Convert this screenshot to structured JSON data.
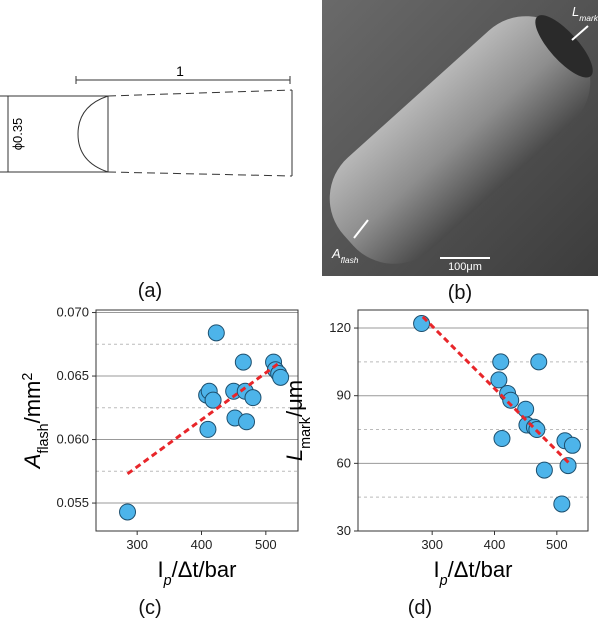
{
  "panel_a": {
    "length_label": "1",
    "diameter_label": "ϕ0.35",
    "caption": "(a)"
  },
  "panel_b": {
    "mark_label": [
      {
        "text": "L"
      },
      {
        "text": "mark",
        "sub": true
      }
    ],
    "flash_label": [
      {
        "text": "A"
      },
      {
        "text": "flash",
        "sub": true
      }
    ],
    "scale_label": "100μm",
    "caption": "(b)"
  },
  "chart_data": [
    {
      "type": "scatter",
      "caption": "(c)",
      "ylabel": [
        {
          "text": "A",
          "italic": true
        },
        {
          "text": "flash",
          "sub": true
        },
        {
          "text": "/mm"
        },
        {
          "text": "2",
          "sup": true
        }
      ],
      "xlabel": [
        {
          "text": "I"
        },
        {
          "text": "p",
          "sub": true,
          "italic": true
        },
        {
          "text": "/Δt/bar"
        }
      ],
      "xlim": [
        236,
        550
      ],
      "xticks": [
        300,
        400,
        500
      ],
      "ylim": [
        0.0528,
        0.0702
      ],
      "yticks": [
        {
          "value": 0.055,
          "label": "0.055"
        },
        {
          "value": 0.06,
          "label": "0.060"
        },
        {
          "value": 0.065,
          "label": "0.065"
        },
        {
          "value": 0.07,
          "label": "0.070"
        }
      ],
      "yminorticks": [
        0.0575,
        0.0625,
        0.0675
      ],
      "grid": true,
      "color": "#4db4ea",
      "x": [
        285,
        423,
        408,
        412,
        418,
        410,
        450,
        452,
        465,
        468,
        470,
        480,
        512,
        515,
        520,
        523
      ],
      "values": [
        0.0543,
        0.0684,
        0.0635,
        0.0638,
        0.0631,
        0.0608,
        0.0638,
        0.0617,
        0.0661,
        0.0638,
        0.0614,
        0.0633,
        0.0661,
        0.0655,
        0.0652,
        0.0649
      ],
      "trendline": {
        "color": "#e8262a",
        "x": [
          285,
          520
        ],
        "values": [
          0.0573,
          0.066
        ]
      }
    },
    {
      "type": "scatter",
      "caption": "(d)",
      "ylabel": [
        {
          "text": "L",
          "italic": true
        },
        {
          "text": "mark",
          "sub": true
        },
        {
          "text": "/μm"
        }
      ],
      "xlabel": [
        {
          "text": "I"
        },
        {
          "text": "p",
          "sub": true,
          "italic": true
        },
        {
          "text": "/Δt/bar"
        }
      ],
      "xlim": [
        181,
        550
      ],
      "xticks": [
        300,
        400,
        500
      ],
      "ylim": [
        30,
        128
      ],
      "yticks": [
        30,
        60,
        90,
        120
      ],
      "yminorticks": [
        45,
        75,
        105
      ],
      "grid": true,
      "color": "#4db4ea",
      "x": [
        283,
        410,
        407,
        421,
        426,
        412,
        450,
        452,
        464,
        468,
        471,
        480,
        513,
        518,
        525,
        508
      ],
      "values": [
        122,
        105,
        97,
        91,
        88,
        71,
        84,
        77,
        76,
        75,
        105,
        57,
        70,
        59,
        68,
        42
      ],
      "trendline": {
        "color": "#e8262a",
        "x": [
          285,
          520
        ],
        "values": [
          125,
          60
        ]
      }
    }
  ]
}
